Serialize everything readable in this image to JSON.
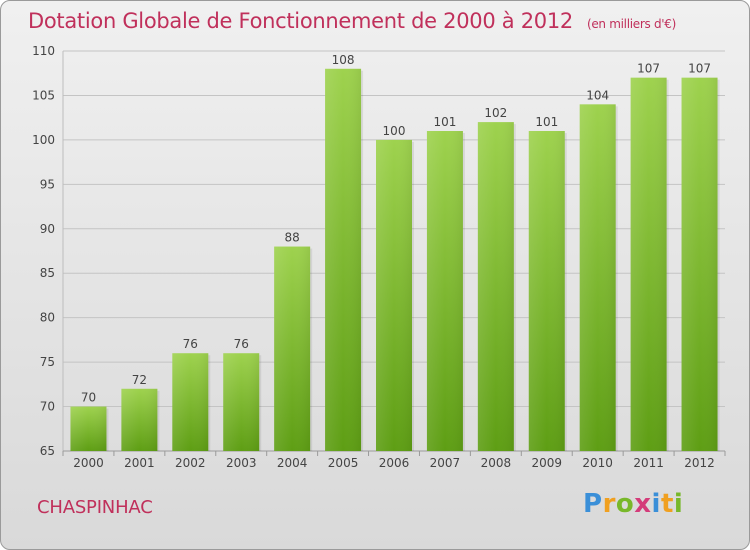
{
  "header": {
    "title": "Dotation Globale de Fonctionnement de 2000 à 2012",
    "unit": "(en milliers d'€)"
  },
  "footer": {
    "commune": "CHASPINHAC",
    "brand": "Proxiti",
    "brand_colors": [
      "#3a8fd8",
      "#f0a020",
      "#78b82a",
      "#d43c7a",
      "#3a8fd8",
      "#f0a020",
      "#78b82a"
    ]
  },
  "chart_data": {
    "type": "bar",
    "categories": [
      "2000",
      "2001",
      "2002",
      "2003",
      "2004",
      "2005",
      "2006",
      "2007",
      "2008",
      "2009",
      "2010",
      "2011",
      "2012"
    ],
    "values": [
      70,
      72,
      76,
      76,
      88,
      108,
      100,
      101,
      102,
      101,
      104,
      107,
      107
    ],
    "ylim": [
      65,
      110
    ],
    "yticks": [
      65,
      70,
      75,
      80,
      85,
      90,
      95,
      100,
      105,
      110
    ],
    "grid": true,
    "bar_color": "#7cc030",
    "title_color": "#c0305b"
  }
}
